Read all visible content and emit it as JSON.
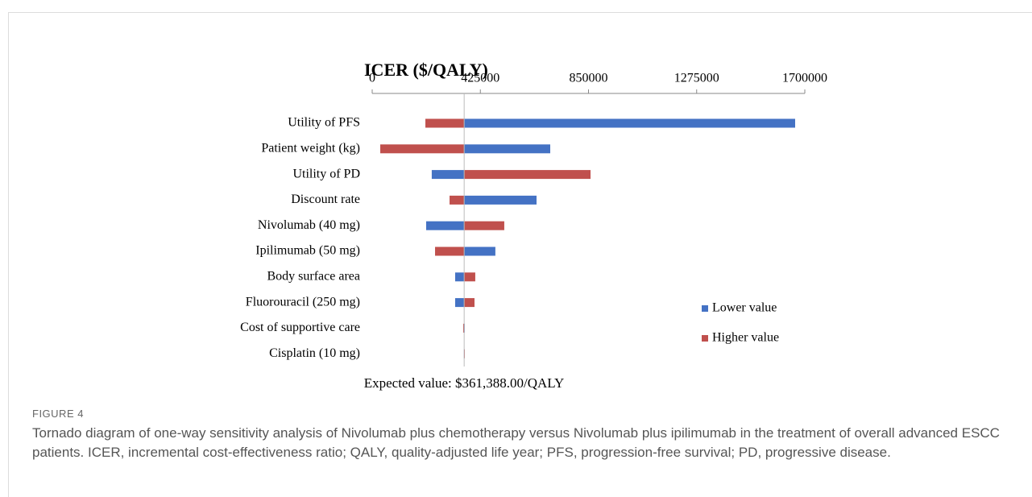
{
  "chart_data": {
    "type": "tornado",
    "title": "ICER ($/QALY)",
    "categories": [
      "Utility of PFS",
      "Patient weight (kg)",
      "Utility of PD",
      "Discount rate",
      "Nivolumab (40 mg)",
      "Ipilimumab (50 mg)",
      "Body surface area",
      "Fluorouracil (250 mg)",
      "Cost of supportive care",
      "Cisplatin (10 mg)"
    ],
    "series": [
      {
        "name": "Lower value",
        "color": "#4472c4",
        "values": [
          1662000,
          699600,
          234000,
          645800,
          212000,
          484000,
          326000,
          326000,
          361000,
          360500
        ]
      },
      {
        "name": "Higher value",
        "color": "#c0504d",
        "values": [
          209000,
          31700,
          858000,
          304000,
          519000,
          247000,
          405000,
          402000,
          357500,
          362000
        ]
      }
    ],
    "base": 361388,
    "annotation": "Expected value: $361,388.00/QALY",
    "xlim": [
      0,
      1700000
    ],
    "xticks": [
      0,
      425000,
      850000,
      1275000,
      1700000
    ],
    "legend": "right"
  },
  "figure": {
    "label": "FIGURE 4",
    "caption": "Tornado diagram of one-way sensitivity analysis of Nivolumab plus chemotherapy versus Nivolumab plus ipilimumab in the treatment of overall advanced ESCC patients. ICER, incremental cost-effectiveness ratio; QALY, quality-adjusted life year; PFS, progression-free survival; PD, progressive disease."
  }
}
